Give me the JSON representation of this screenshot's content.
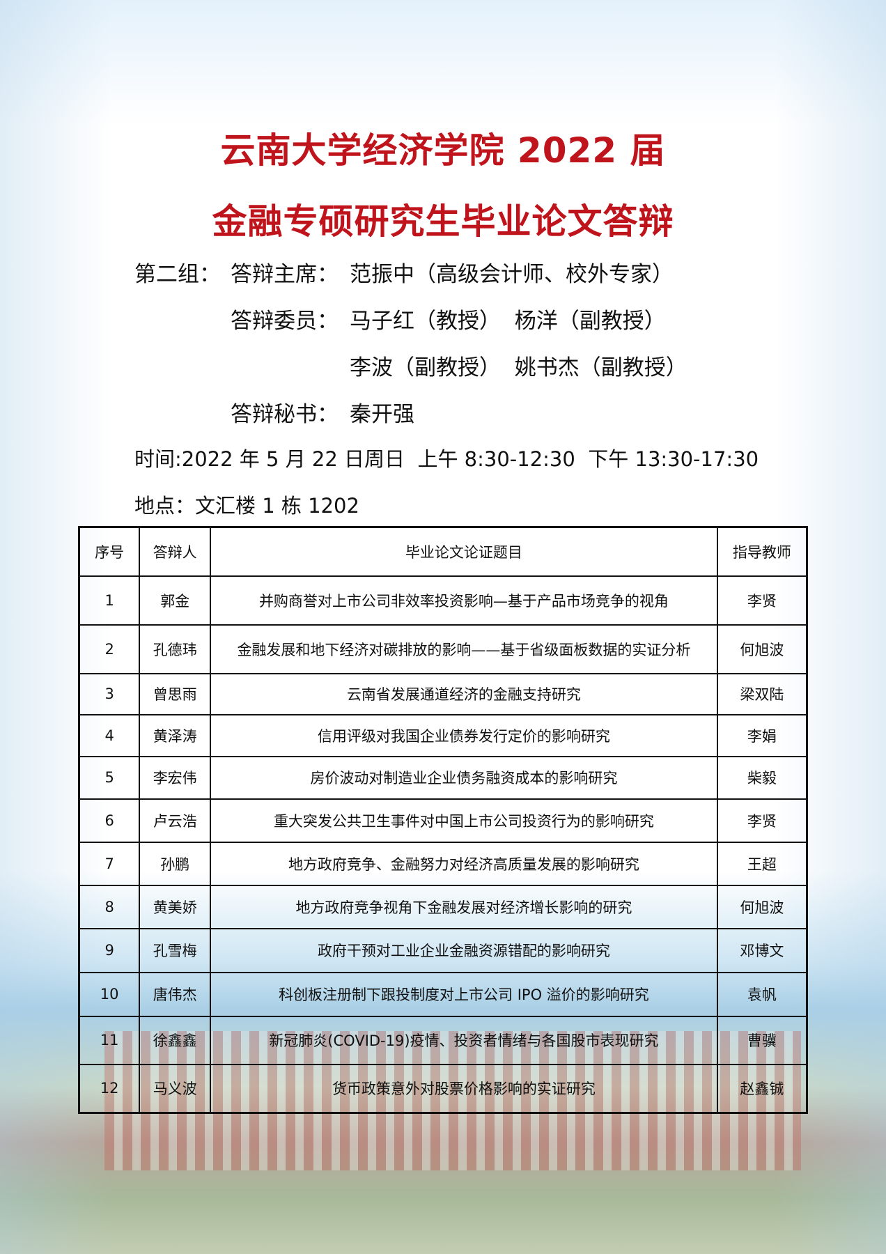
{
  "title": {
    "line1": "云南大学经济学院 2022 届",
    "line2": "金融专硕研究生毕业论文答辩",
    "color": "#c0141c"
  },
  "info": {
    "group_label": "第二组：",
    "chair_label": "答辩主席：",
    "chair": "范振中（高级会计师、校外专家）",
    "members_label": "答辩委员：",
    "members_row1": "马子红（教授）  杨洋（副教授）",
    "members_row2": "李波（副教授）  姚书杰（副教授）",
    "secretary_label": "答辩秘书：",
    "secretary": "秦开强",
    "time": "时间:2022 年 5 月 22 日周日  上午 8:30-12:30  下午 13:30-17:30",
    "place": "地点：文汇楼 1 栋 1202"
  },
  "table": {
    "headers": [
      "序号",
      "答辩人",
      "毕业论文论证题目",
      "指导教师"
    ],
    "rows": [
      [
        "1",
        "郭金",
        "并购商誉对上市公司非效率投资影响—基于产品市场竞争的视角",
        "李贤"
      ],
      [
        "2",
        "孔德玮",
        "金融发展和地下经济对碳排放的影响——基于省级面板数据的实证分析",
        "何旭波"
      ],
      [
        "3",
        "曾思雨",
        "云南省发展通道经济的金融支持研究",
        "梁双陆"
      ],
      [
        "4",
        "黄泽涛",
        "信用评级对我国企业债券发行定价的影响研究",
        "李娟"
      ],
      [
        "5",
        "李宏伟",
        "房价波动对制造业企业债务融资成本的影响研究",
        "柴毅"
      ],
      [
        "6",
        "卢云浩",
        "重大突发公共卫生事件对中国上市公司投资行为的影响研究",
        "李贤"
      ],
      [
        "7",
        "孙鹏",
        "地方政府竞争、金融努力对经济高质量发展的影响研究",
        "王超"
      ],
      [
        "8",
        "黄美娇",
        "地方政府竞争视角下金融发展对经济增长影响的研究",
        "何旭波"
      ],
      [
        "9",
        "孔雪梅",
        "政府干预对工业企业金融资源错配的影响研究",
        "邓博文"
      ],
      [
        "10",
        "唐伟杰",
        "科创板注册制下跟投制度对上市公司 IPO 溢价的影响研究",
        "袁帆"
      ],
      [
        "11",
        "徐鑫鑫",
        "新冠肺炎(COVID-19)疫情、投资者情绪与各国股市表现研究",
        "曹骥"
      ],
      [
        "12",
        "马义波",
        "货币政策意外对股票价格影响的实证研究",
        "赵鑫铖"
      ]
    ]
  }
}
